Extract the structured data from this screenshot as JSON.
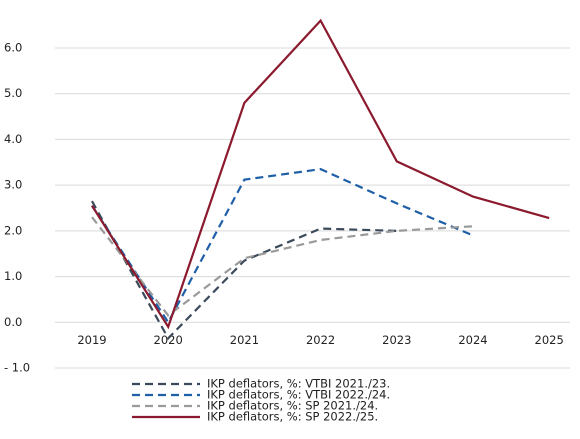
{
  "chart_data": {
    "type": "line",
    "categories": [
      "2019",
      "2020",
      "2021",
      "2022",
      "2023",
      "2024",
      "2025"
    ],
    "series": [
      {
        "name": "IKP deflators, %: VTBI 2021./23.",
        "color": "#3b4a5a",
        "dashed": true,
        "values": [
          2.65,
          -0.35,
          1.35,
          2.05,
          2.0,
          null,
          null
        ]
      },
      {
        "name": "IKP deflators, %: VTBI 2022./24.",
        "color": "#1f5fa8",
        "dashed": true,
        "values": [
          2.55,
          0.0,
          3.12,
          3.35,
          2.6,
          1.9,
          null
        ]
      },
      {
        "name": "IKP deflators, %: SP 2021./24.",
        "color": "#9a9a9a",
        "dashed": true,
        "values": [
          2.3,
          0.15,
          1.4,
          1.8,
          2.0,
          2.1,
          null
        ]
      },
      {
        "name": "IKP deflators, %: SP 2022./25.",
        "color": "#8b1a2e",
        "dashed": false,
        "values": [
          2.55,
          -0.1,
          4.8,
          6.6,
          3.52,
          2.75,
          2.28
        ]
      }
    ],
    "ylim": [
      -1.0,
      6.0
    ],
    "yticks": [
      {
        "value": -1.0,
        "label": "- 1.0"
      },
      {
        "value": 0.0,
        "label": "0.0"
      },
      {
        "value": 1.0,
        "label": "1.0"
      },
      {
        "value": 2.0,
        "label": "2.0"
      },
      {
        "value": 3.0,
        "label": "3.0"
      },
      {
        "value": 4.0,
        "label": "4.0"
      },
      {
        "value": 5.0,
        "label": "5.0"
      },
      {
        "value": 6.0,
        "label": "6.0"
      }
    ],
    "grid": true,
    "legend": "bottom"
  }
}
